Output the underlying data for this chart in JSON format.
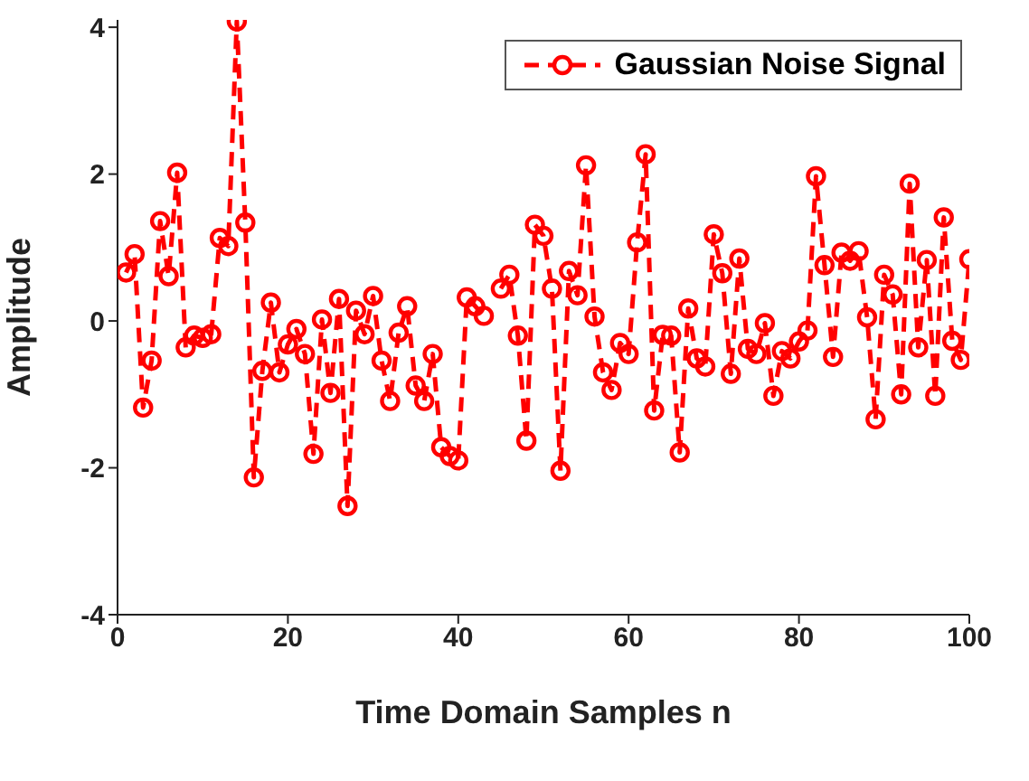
{
  "chart_data": {
    "type": "line",
    "xlabel": "Time Domain Samples n",
    "ylabel": "Amplitude",
    "x": [
      1,
      2,
      3,
      4,
      5,
      6,
      7,
      8,
      9,
      10,
      11,
      12,
      13,
      14,
      15,
      16,
      17,
      18,
      19,
      20,
      21,
      22,
      23,
      24,
      25,
      26,
      27,
      28,
      29,
      30,
      31,
      32,
      33,
      34,
      35,
      36,
      37,
      38,
      39,
      40,
      41,
      42,
      43,
      44,
      45,
      46,
      47,
      48,
      49,
      50,
      51,
      52,
      53,
      54,
      55,
      56,
      57,
      58,
      59,
      60,
      61,
      62,
      63,
      64,
      65,
      66,
      67,
      68,
      69,
      70,
      71,
      72,
      73,
      74,
      75,
      76,
      77,
      78,
      79,
      80,
      81,
      82,
      83,
      84,
      85,
      86,
      87,
      88,
      89,
      90,
      91,
      92,
      93,
      94,
      95,
      96,
      97,
      98,
      99,
      100
    ],
    "series": [
      {
        "name": "Gaussian Noise Signal",
        "color": "#ff0000",
        "values": [
          0.66,
          0.91,
          -1.18,
          -0.54,
          1.36,
          0.61,
          2.02,
          -0.36,
          -0.2,
          -0.23,
          -0.18,
          1.13,
          1.02,
          4.08,
          1.34,
          -2.13,
          -0.68,
          0.25,
          -0.7,
          -0.32,
          -0.11,
          -0.45,
          -1.81,
          0.02,
          -0.98,
          0.3,
          -2.52,
          0.14,
          -0.18,
          0.34,
          -0.54,
          -1.09,
          -0.16,
          0.2,
          -0.88,
          -1.09,
          -0.45,
          -1.72,
          -1.84,
          -1.9,
          0.32,
          0.2,
          0.07,
          null,
          0.44,
          0.63,
          -0.2,
          -1.63,
          1.31,
          1.16,
          0.44,
          -2.04,
          0.68,
          0.35,
          2.12,
          0.06,
          -0.7,
          -0.94,
          -0.3,
          -0.45,
          1.07,
          2.27,
          -1.22,
          -0.19,
          -0.2,
          -1.79,
          0.17,
          -0.51,
          -0.62,
          1.18,
          0.65,
          -0.72,
          0.85,
          -0.38,
          -0.45,
          -0.03,
          -1.02,
          -0.41,
          -0.51,
          -0.28,
          -0.13,
          1.97,
          0.76,
          -0.49,
          0.93,
          0.82,
          0.95,
          0.05,
          -1.34,
          0.63,
          0.36,
          -1.0,
          1.87,
          -0.36,
          0.83,
          -1.02,
          1.41,
          -0.27,
          -0.53,
          0.84
        ]
      }
    ],
    "xlim": [
      0,
      100
    ],
    "xticks": [
      0,
      20,
      40,
      60,
      80,
      100
    ],
    "ylim": [
      -4,
      4.1
    ],
    "yticks": [
      -4,
      -2,
      0,
      2,
      4
    ],
    "grid": false,
    "legend": "top right",
    "marker": "circle",
    "line_style": "dashed"
  }
}
